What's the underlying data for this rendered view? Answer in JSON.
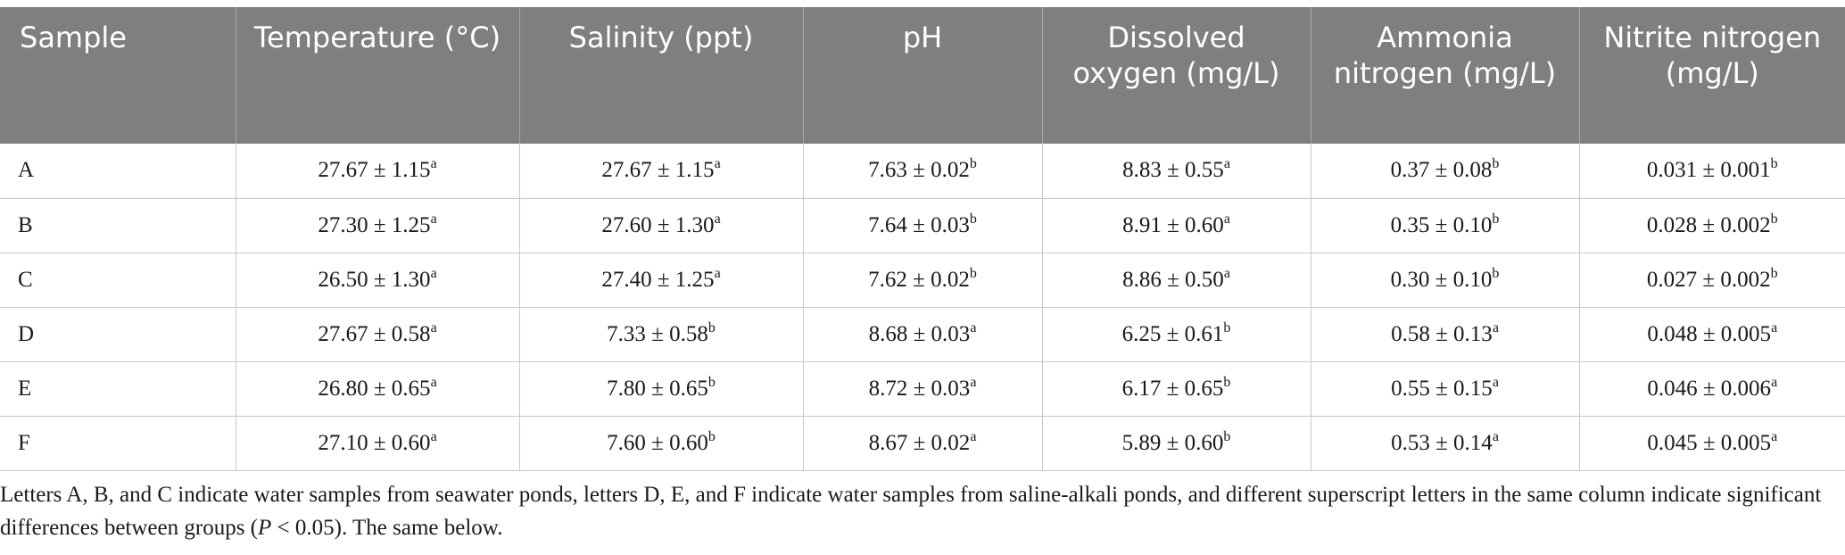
{
  "table": {
    "headers": [
      "Sample",
      "Temperature (°C)",
      "Salinity (ppt)",
      "pH",
      "Dissolved oxygen (mg/L)",
      "Ammonia nitrogen (mg/L)",
      "Nitrite nitrogen (mg/L)"
    ],
    "rows": [
      {
        "sample": "A",
        "cells": [
          {
            "value": "27.67 ± 1.15",
            "sup": "a"
          },
          {
            "value": "27.67 ± 1.15",
            "sup": "a"
          },
          {
            "value": "7.63 ± 0.02",
            "sup": "b"
          },
          {
            "value": "8.83 ± 0.55",
            "sup": "a"
          },
          {
            "value": "0.37 ± 0.08",
            "sup": "b"
          },
          {
            "value": "0.031 ± 0.001",
            "sup": "b"
          }
        ]
      },
      {
        "sample": "B",
        "cells": [
          {
            "value": "27.30 ± 1.25",
            "sup": "a"
          },
          {
            "value": "27.60 ± 1.30",
            "sup": "a"
          },
          {
            "value": "7.64 ± 0.03",
            "sup": "b"
          },
          {
            "value": "8.91 ± 0.60",
            "sup": "a"
          },
          {
            "value": "0.35 ± 0.10",
            "sup": "b"
          },
          {
            "value": "0.028 ± 0.002",
            "sup": "b"
          }
        ]
      },
      {
        "sample": "C",
        "cells": [
          {
            "value": "26.50 ± 1.30",
            "sup": "a"
          },
          {
            "value": "27.40 ± 1.25",
            "sup": "a"
          },
          {
            "value": "7.62 ± 0.02",
            "sup": "b"
          },
          {
            "value": "8.86 ± 0.50",
            "sup": "a"
          },
          {
            "value": "0.30 ± 0.10",
            "sup": "b"
          },
          {
            "value": "0.027 ± 0.002",
            "sup": "b"
          }
        ]
      },
      {
        "sample": "D",
        "cells": [
          {
            "value": "27.67 ± 0.58",
            "sup": "a"
          },
          {
            "value": "7.33 ± 0.58",
            "sup": "b"
          },
          {
            "value": "8.68 ± 0.03",
            "sup": "a"
          },
          {
            "value": "6.25 ± 0.61",
            "sup": "b"
          },
          {
            "value": "0.58 ± 0.13",
            "sup": "a"
          },
          {
            "value": "0.048 ± 0.005",
            "sup": "a"
          }
        ]
      },
      {
        "sample": "E",
        "cells": [
          {
            "value": "26.80 ± 0.65",
            "sup": "a"
          },
          {
            "value": "7.80 ± 0.65",
            "sup": "b"
          },
          {
            "value": "8.72 ± 0.03",
            "sup": "a"
          },
          {
            "value": "6.17 ± 0.65",
            "sup": "b"
          },
          {
            "value": "0.55 ± 0.15",
            "sup": "a"
          },
          {
            "value": "0.046 ± 0.006",
            "sup": "a"
          }
        ]
      },
      {
        "sample": "F",
        "cells": [
          {
            "value": "27.10 ± 0.60",
            "sup": "a"
          },
          {
            "value": "7.60 ± 0.60",
            "sup": "b"
          },
          {
            "value": "8.67 ± 0.02",
            "sup": "a"
          },
          {
            "value": "5.89 ± 0.60",
            "sup": "b"
          },
          {
            "value": "0.53 ± 0.14",
            "sup": "a"
          },
          {
            "value": "0.045 ± 0.005",
            "sup": "a"
          }
        ]
      }
    ]
  },
  "footnote": {
    "part1": "Letters A, B, and C indicate water samples from seawater ponds, letters D, E, and F indicate water samples from saline-alkali ponds, and different superscript letters in the same column indicate significant differences between groups (",
    "italic": "P",
    "part2": " < 0.05). The same below."
  },
  "colors": {
    "header_bg": "#7f7f7f",
    "header_text": "#ffffff",
    "grid_line": "#c8c8c8",
    "body_text": "#1a1a1a"
  }
}
